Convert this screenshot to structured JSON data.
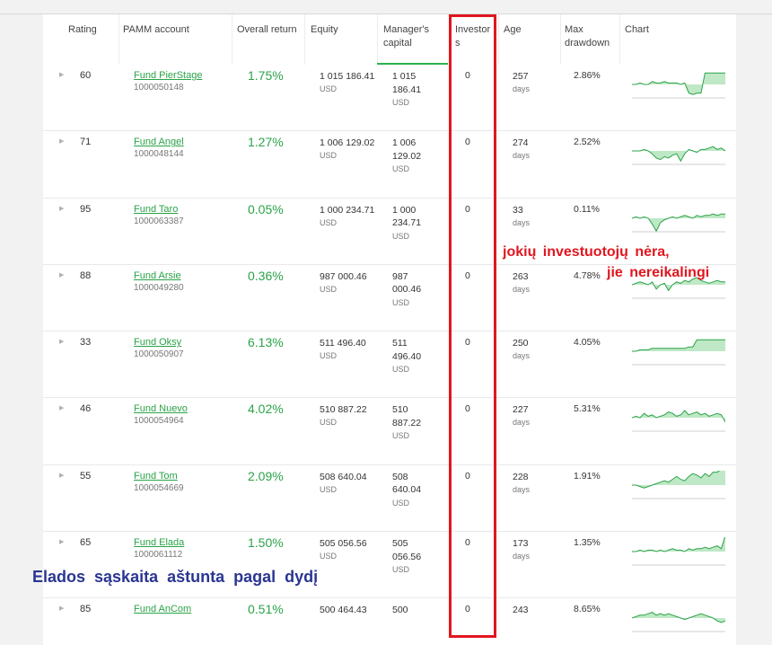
{
  "header": {
    "rating": "Rating",
    "pamm_account": "PAMM account",
    "overall_return": "Overall return",
    "equity": "Equity",
    "managers_capital_l1": "Manager's",
    "managers_capital_l2": "capital",
    "investors_l1": "Investor",
    "investors_l2": "s",
    "age": "Age",
    "max_drawdown_l1": "Max",
    "max_drawdown_l2": "drawdown",
    "chart": "Chart"
  },
  "rows": [
    {
      "rating": "60",
      "name": "Fund PierStage",
      "id": "1000050148",
      "ret": "1.75%",
      "equity": "1 015 186.41",
      "eq_unit": "USD",
      "mc1": "1 015",
      "mc2": "186.41",
      "mc_unit": "USD",
      "investors": "0",
      "age": "257",
      "age_unit": "days",
      "dd": "2.86%",
      "spark": [
        0,
        0,
        1,
        0,
        0,
        2,
        1,
        1,
        2,
        1,
        1,
        1,
        0,
        1,
        -6,
        -7,
        -6,
        -6,
        8,
        8,
        8,
        8,
        8,
        8
      ]
    },
    {
      "rating": "71",
      "name": "Fund Angel",
      "id": "1000048144",
      "ret": "1.27%",
      "equity": "1 006 129.02",
      "eq_unit": "USD",
      "mc1": "1 006",
      "mc2": "129.02",
      "mc_unit": "USD",
      "investors": "0",
      "age": "274",
      "age_unit": "days",
      "dd": "2.52%",
      "spark": [
        0,
        0,
        0,
        1,
        0,
        -2,
        -5,
        -6,
        -4,
        -5,
        -3,
        -2,
        -7,
        -2,
        1,
        0,
        -1,
        1,
        1,
        2,
        3,
        1,
        2,
        0
      ]
    },
    {
      "rating": "95",
      "name": "Fund Taro",
      "id": "1000063387",
      "ret": "0.05%",
      "equity": "1 000 234.71",
      "eq_unit": "USD",
      "mc1": "1 000",
      "mc2": "234.71",
      "mc_unit": "USD",
      "investors": "0",
      "age": "33",
      "age_unit": "days",
      "dd": "0.11%",
      "spark": [
        0,
        1,
        0,
        1,
        0,
        -4,
        -9,
        -3,
        -1,
        0,
        1,
        0,
        1,
        2,
        1,
        0,
        2,
        1,
        2,
        2,
        3,
        2,
        3,
        3
      ]
    },
    {
      "rating": "88",
      "name": "Fund Arsie",
      "id": "1000049280",
      "ret": "0.36%",
      "equity": "987 000.46",
      "eq_unit": "USD",
      "mc1": "987",
      "mc2": "000.46",
      "mc_unit": "USD",
      "investors": "0",
      "age": "263",
      "age_unit": "days",
      "dd": "4.78%",
      "spark": [
        0,
        1,
        2,
        1,
        0,
        2,
        -3,
        0,
        1,
        -4,
        0,
        2,
        1,
        3,
        2,
        4,
        5,
        3,
        2,
        1,
        2,
        3,
        2,
        2
      ]
    },
    {
      "rating": "33",
      "name": "Fund Oksy",
      "id": "1000050907",
      "ret": "6.13%",
      "equity": "511 496.40",
      "eq_unit": "USD",
      "mc1": "511",
      "mc2": "496.40",
      "mc_unit": "USD",
      "investors": "0",
      "age": "250",
      "age_unit": "days",
      "dd": "4.05%",
      "spark": [
        0,
        0,
        1,
        1,
        1,
        2,
        2,
        2,
        2,
        2,
        2,
        2,
        2,
        2,
        3,
        3,
        8,
        8,
        8,
        8,
        8,
        8,
        8,
        8
      ]
    },
    {
      "rating": "46",
      "name": "Fund Nuevo",
      "id": "1000054964",
      "ret": "4.02%",
      "equity": "510 887.22",
      "eq_unit": "USD",
      "mc1": "510",
      "mc2": "887.22",
      "mc_unit": "USD",
      "investors": "0",
      "age": "227",
      "age_unit": "days",
      "dd": "5.31%",
      "spark": [
        0,
        1,
        0,
        3,
        1,
        2,
        0,
        1,
        2,
        4,
        3,
        1,
        2,
        5,
        2,
        3,
        4,
        2,
        3,
        1,
        2,
        3,
        2,
        -3
      ]
    },
    {
      "rating": "55",
      "name": "Fund Tom",
      "id": "1000054669",
      "ret": "2.09%",
      "equity": "508 640.04",
      "eq_unit": "USD",
      "mc1": "508",
      "mc2": "640.04",
      "mc_unit": "USD",
      "investors": "0",
      "age": "228",
      "age_unit": "days",
      "dd": "1.91%",
      "spark": [
        0,
        0,
        -1,
        -2,
        -1,
        0,
        1,
        2,
        3,
        2,
        4,
        6,
        4,
        3,
        6,
        8,
        7,
        5,
        8,
        6,
        9,
        9,
        11,
        11
      ]
    },
    {
      "rating": "65",
      "name": "Fund Elada",
      "id": "1000061112",
      "ret": "1.50%",
      "equity": "505 056.56",
      "eq_unit": "USD",
      "mc1": "505",
      "mc2": "056.56",
      "mc_unit": "USD",
      "investors": "0",
      "age": "173",
      "age_unit": "days",
      "dd": "1.35%",
      "spark": [
        0,
        0,
        1,
        0,
        1,
        1,
        0,
        1,
        0,
        1,
        2,
        1,
        1,
        0,
        2,
        1,
        2,
        2,
        3,
        2,
        3,
        4,
        2,
        11
      ]
    },
    {
      "rating": "85",
      "name": "Fund AnCom",
      "id": "",
      "ret": "0.51%",
      "equity": "500 464.43",
      "eq_unit": "",
      "mc1": "500",
      "mc2": "",
      "mc_unit": "",
      "investors": "0",
      "age": "243",
      "age_unit": "",
      "dd": "8.65%",
      "spark": [
        0,
        1,
        2,
        2,
        3,
        4,
        2,
        3,
        2,
        3,
        2,
        1,
        0,
        -1,
        0,
        1,
        2,
        3,
        2,
        1,
        0,
        -2,
        -3,
        -2
      ]
    }
  ],
  "annotations": {
    "no_investors_l1": "jokių investuotojų nėra,",
    "no_investors_l2": "jie nereikalingi",
    "elada_note": "Elados sąskaita aštunta pagal dydį"
  },
  "colors": {
    "accent_green": "#2aa348",
    "annotation_red": "#e1161f",
    "annotation_blue": "#2a3592"
  }
}
